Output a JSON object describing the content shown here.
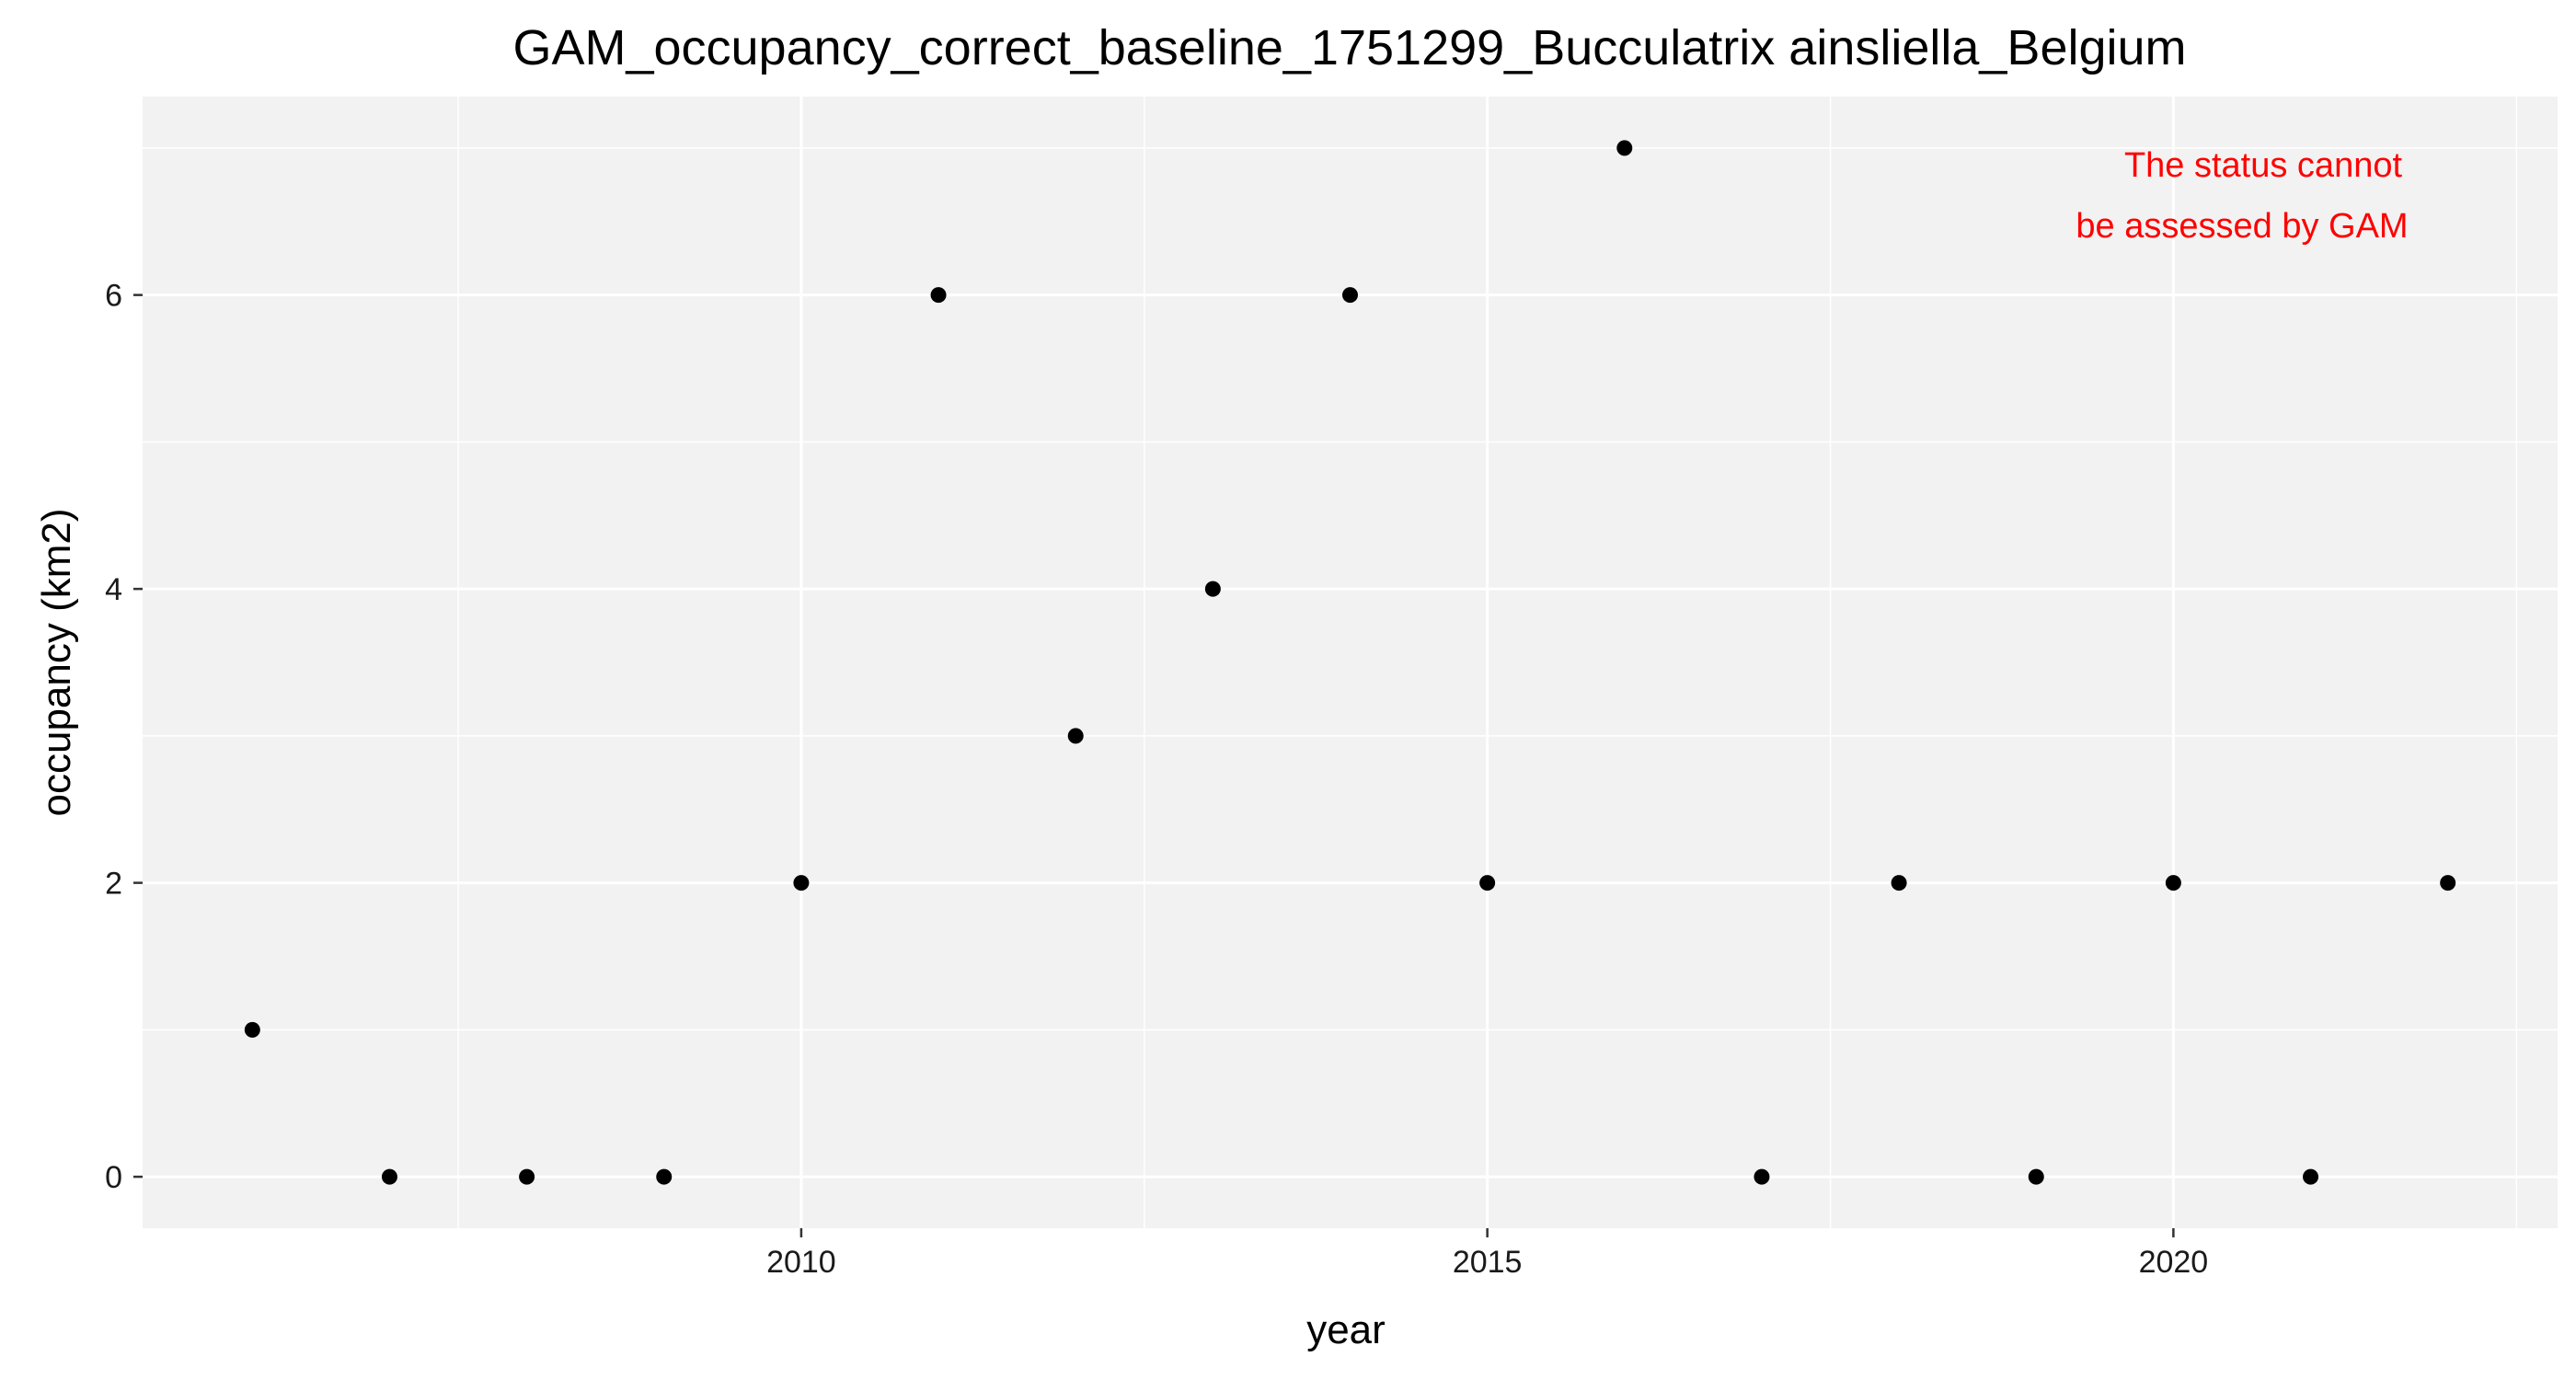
{
  "chart_data": {
    "type": "scatter",
    "title": "GAM_occupancy_correct_baseline_1751299_Bucculatrix ainsliella_Belgium",
    "xlabel": "year",
    "ylabel": "occupancy (km2)",
    "x": [
      2006,
      2007,
      2008,
      2009,
      2010,
      2011,
      2012,
      2013,
      2014,
      2015,
      2016,
      2017,
      2018,
      2019,
      2020,
      2021,
      2022
    ],
    "y": [
      1,
      0,
      0,
      0,
      2,
      6,
      3,
      4,
      6,
      2,
      7,
      0,
      2,
      0,
      2,
      0,
      2
    ],
    "xlim": [
      2005.2,
      2022.8
    ],
    "ylim": [
      -0.35,
      7.35
    ],
    "x_ticks": [
      2010,
      2015,
      2020
    ],
    "x_tick_labels": [
      "2010",
      "2015",
      "2020"
    ],
    "x_minor_ticks": [
      2007.5,
      2012.5,
      2017.5,
      2022.5
    ],
    "y_ticks": [
      0,
      2,
      4,
      6
    ],
    "y_tick_labels": [
      "0",
      "2",
      "4",
      "6"
    ],
    "y_minor_ticks": [
      1,
      3,
      5,
      7
    ],
    "grid": true,
    "annotation": {
      "lines": [
        "The status cannot",
        "be assessed by GAM"
      ],
      "color": "#ff0000",
      "placement": "top-right"
    },
    "colors": {
      "panel_bg": "#f2f2f2",
      "grid": "#ffffff",
      "point": "#000000"
    }
  }
}
